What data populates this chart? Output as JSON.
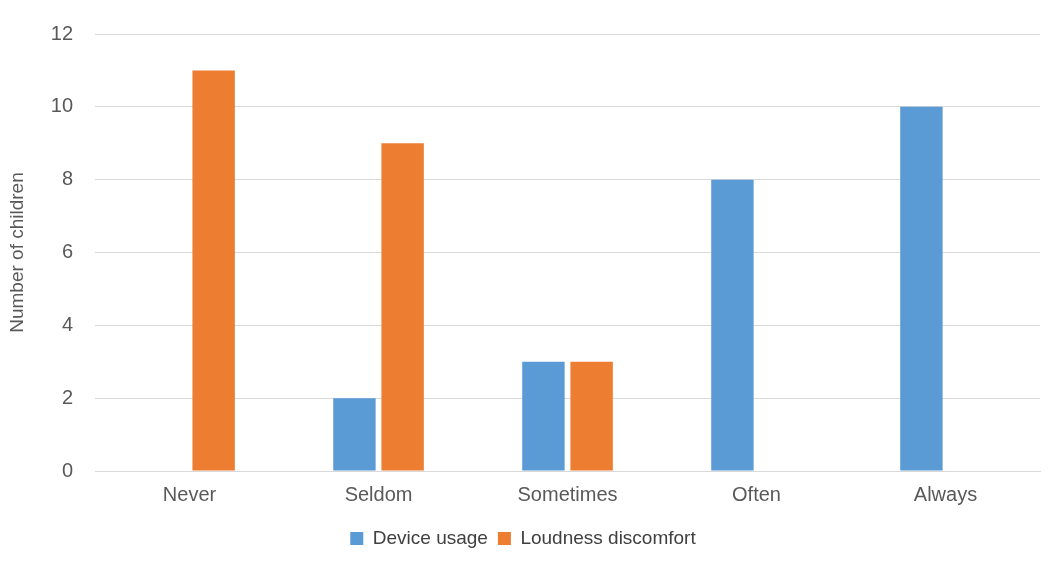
{
  "chart_data": {
    "type": "bar",
    "ylabel": "Number of children",
    "categories": [
      "Never",
      "Seldom",
      "Sometimes",
      "Often",
      "Always"
    ],
    "series": [
      {
        "name": "Device usage",
        "color": "#5b9bd5",
        "values": [
          0,
          2,
          3,
          8,
          10
        ]
      },
      {
        "name": "Loudness discomfort",
        "color": "#ed7d31",
        "values": [
          11,
          9,
          3,
          0,
          0
        ]
      }
    ],
    "ylim": [
      0,
      12
    ],
    "yticks": [
      0,
      2,
      4,
      6,
      8,
      10,
      12
    ],
    "grid": "y",
    "legend": "bottom"
  }
}
